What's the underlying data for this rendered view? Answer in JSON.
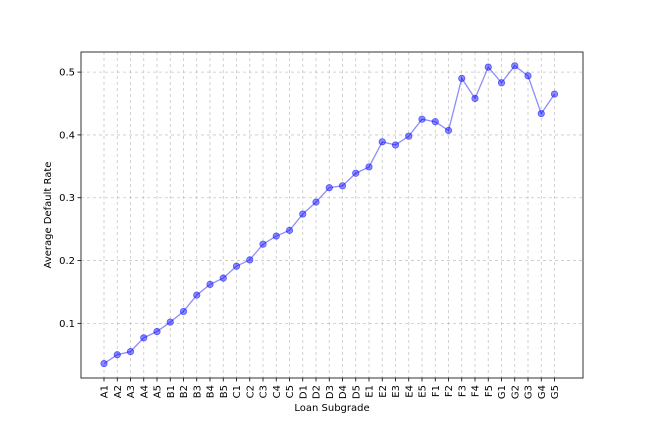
{
  "chart_data": {
    "type": "line",
    "title": "",
    "xlabel": "Loan Subgrade",
    "ylabel": "Average Default Rate",
    "ylim": [
      0.013,
      0.532
    ],
    "yticks": [
      0.1,
      0.2,
      0.3,
      0.4,
      0.5
    ],
    "grid": true,
    "grid_style": "dashed",
    "color": "#0000ff",
    "categories": [
      "A1",
      "A2",
      "A3",
      "A4",
      "A5",
      "B1",
      "B2",
      "B3",
      "B4",
      "B5",
      "C1",
      "C2",
      "C3",
      "C4",
      "C5",
      "D1",
      "D2",
      "D3",
      "D4",
      "D5",
      "E1",
      "E2",
      "E3",
      "E4",
      "E5",
      "F1",
      "F2",
      "F3",
      "F4",
      "F5",
      "G1",
      "G2",
      "G3",
      "G4",
      "G5"
    ],
    "values": [
      0.036,
      0.05,
      0.055,
      0.077,
      0.087,
      0.102,
      0.119,
      0.145,
      0.162,
      0.172,
      0.191,
      0.201,
      0.226,
      0.239,
      0.248,
      0.274,
      0.293,
      0.316,
      0.319,
      0.339,
      0.349,
      0.389,
      0.384,
      0.398,
      0.425,
      0.421,
      0.407,
      0.49,
      0.458,
      0.508,
      0.483,
      0.51,
      0.494,
      0.434,
      0.465
    ]
  }
}
